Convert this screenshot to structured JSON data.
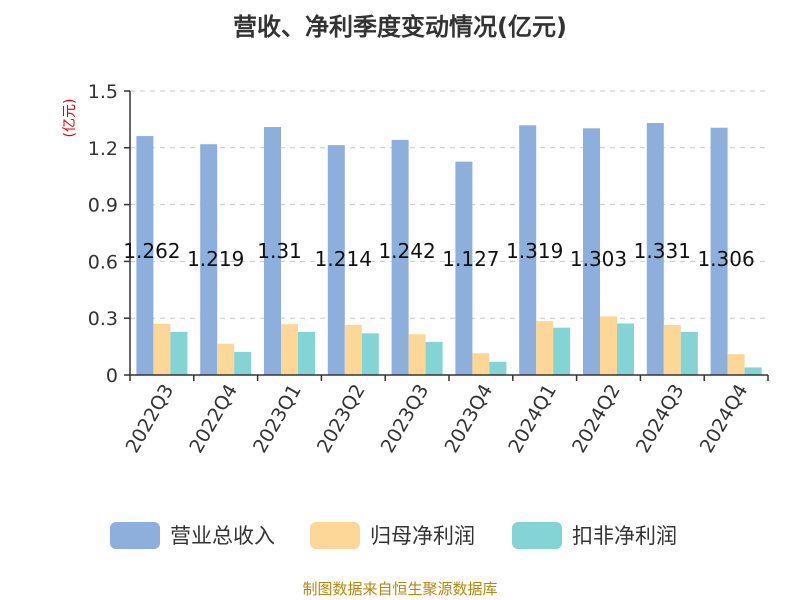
{
  "chart_data": {
    "type": "bar",
    "title": "营收、净利季度变动情况(亿元)",
    "unit_label": "(亿元)",
    "categories": [
      "2022Q3",
      "2022Q4",
      "2023Q1",
      "2023Q2",
      "2023Q3",
      "2023Q4",
      "2024Q1",
      "2024Q2",
      "2024Q3",
      "2024Q4"
    ],
    "ylim": [
      0,
      1.5
    ],
    "yticks": [
      "0",
      "0.3",
      "0.6",
      "0.9",
      "1.2",
      "1.5"
    ],
    "grid": true,
    "legend_position": "bottom",
    "series": [
      {
        "name": "营业总收入",
        "color": "#8eafdc",
        "values": [
          1.262,
          1.219,
          1.31,
          1.214,
          1.242,
          1.127,
          1.319,
          1.303,
          1.331,
          1.306
        ],
        "labels": [
          "1.262",
          "1.219",
          "1.31",
          "1.214",
          "1.242",
          "1.127",
          "1.319",
          "1.303",
          "1.331",
          "1.306"
        ]
      },
      {
        "name": "归母净利润",
        "color": "#fcd797",
        "values": [
          0.27,
          0.165,
          0.268,
          0.265,
          0.215,
          0.115,
          0.285,
          0.31,
          0.265,
          0.11
        ]
      },
      {
        "name": "扣非净利润",
        "color": "#84d4d6",
        "values": [
          0.228,
          0.122,
          0.228,
          0.22,
          0.175,
          0.07,
          0.25,
          0.272,
          0.228,
          0.04
        ]
      }
    ]
  },
  "source_text": "制图数据来自恒生聚源数据库"
}
